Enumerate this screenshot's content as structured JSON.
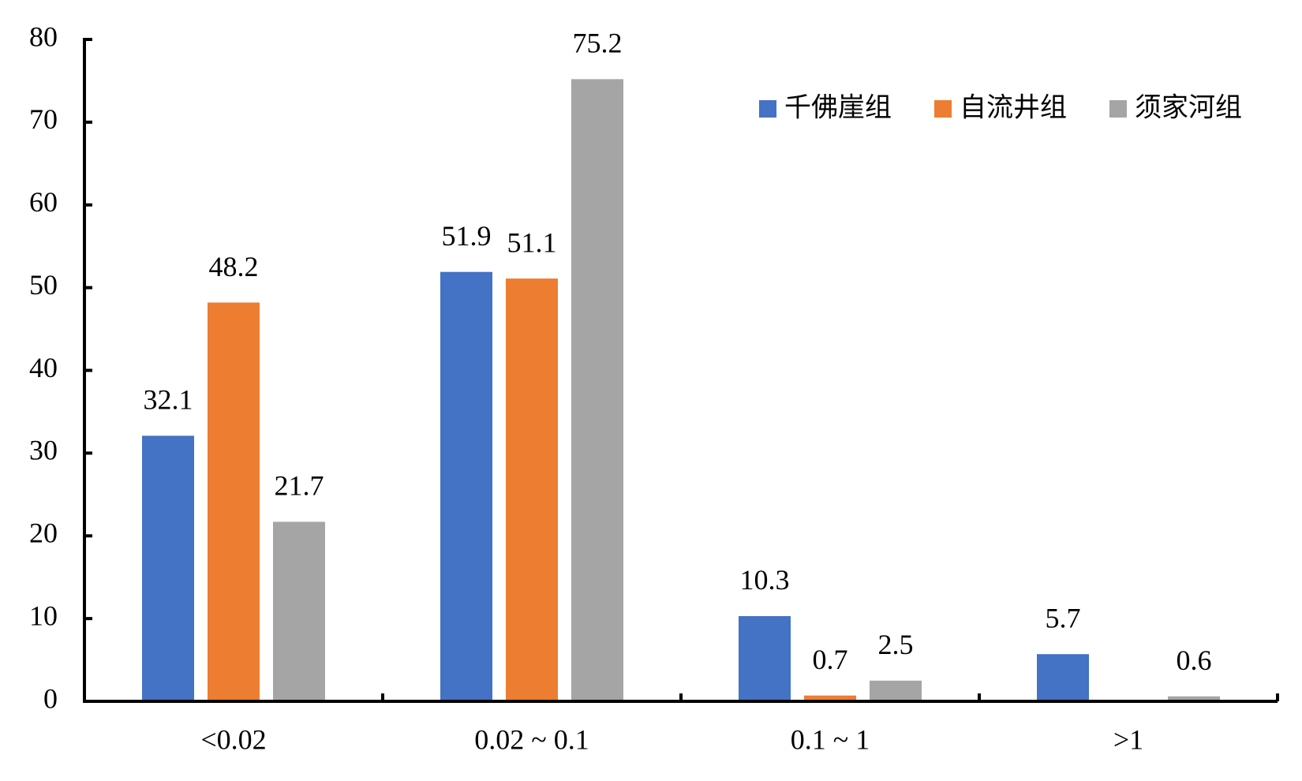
{
  "chart_data": {
    "type": "bar",
    "categories": [
      "<0.02",
      "0.02 ~ 0.1",
      "0.1 ~ 1",
      ">1"
    ],
    "series": [
      {
        "name": "千佛崖组",
        "color": "#4472c4",
        "values": [
          32.1,
          51.9,
          10.3,
          5.7
        ]
      },
      {
        "name": "自流井组",
        "color": "#ed7d31",
        "values": [
          48.2,
          51.1,
          0.7,
          null
        ]
      },
      {
        "name": "须家河组",
        "color": "#a5a5a5",
        "values": [
          21.7,
          75.2,
          2.5,
          0.6
        ]
      }
    ],
    "ylim": [
      0,
      80
    ],
    "yticks": [
      0,
      10,
      20,
      30,
      40,
      50,
      60,
      70,
      80
    ],
    "grid": false,
    "legend": "upper right"
  }
}
